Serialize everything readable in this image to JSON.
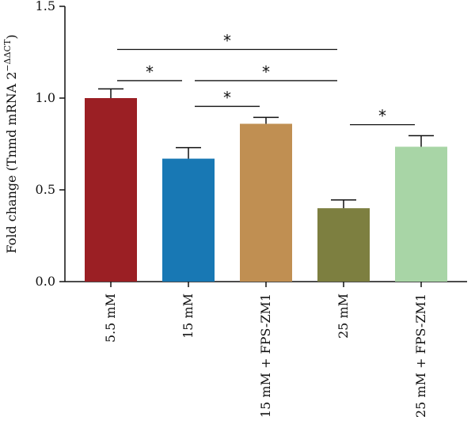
{
  "chart_data": {
    "type": "bar",
    "title": "",
    "xlabel": "",
    "ylabel": "Fold change (Tnmd mRNA 2",
    "ylabel_sup": "−ΔΔCT",
    "ylabel_close": ")",
    "ylim": [
      0,
      1.5
    ],
    "yticks": [
      "0.0",
      "0.5",
      "1.0",
      "1.5"
    ],
    "categories": [
      "5.5 mM",
      "15 mM",
      "15 mM + FPS-ZM1",
      "25 mM",
      "25 mM + FPS-ZM1"
    ],
    "values": [
      1.0,
      0.67,
      0.86,
      0.4,
      0.735
    ],
    "errors": [
      0.05,
      0.06,
      0.035,
      0.045,
      0.06
    ],
    "colors": [
      "#9b1f24",
      "#1878b4",
      "#c08f52",
      "#7d7f40",
      "#a8d5a6"
    ],
    "significance": [
      {
        "from": 0,
        "to": 3,
        "y": 1.265,
        "label": "*"
      },
      {
        "from": 0,
        "to": 1,
        "y": 1.095,
        "label": "*"
      },
      {
        "from": 1,
        "to": 3,
        "y": 1.095,
        "label": "*"
      },
      {
        "from": 1,
        "to": 2,
        "y": 0.955,
        "label": "*"
      },
      {
        "from": 3,
        "to": 4,
        "y": 0.855,
        "label": "*"
      }
    ],
    "grid": false,
    "legend": "none"
  }
}
